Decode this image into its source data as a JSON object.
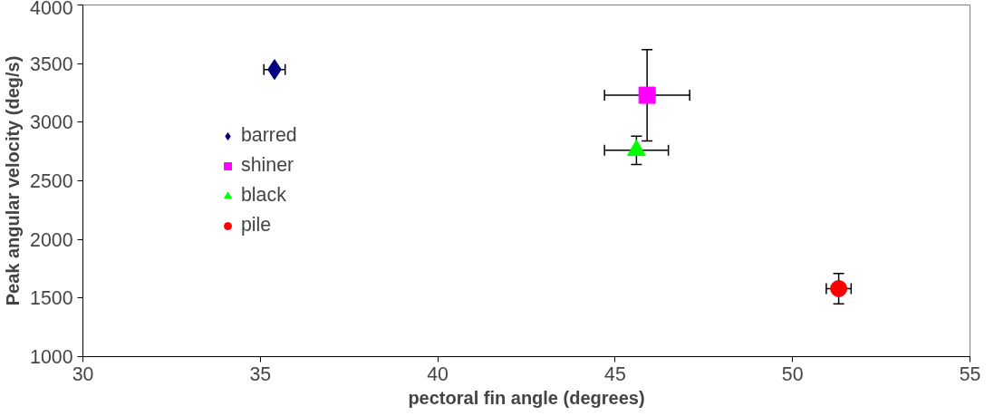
{
  "chart_data": {
    "type": "scatter",
    "xlabel": "pectoral fin angle (degrees)",
    "ylabel": "Peak angular velocity (deg/s)",
    "xlim": [
      30,
      55
    ],
    "xticks": [
      30,
      35,
      40,
      45,
      50,
      55
    ],
    "ylim": [
      1000,
      4000
    ],
    "yticks": [
      1000,
      1500,
      2000,
      2500,
      3000,
      3500,
      4000
    ],
    "grid": false,
    "legend": "left",
    "series": [
      {
        "name": "barred",
        "color": "#000080",
        "marker": "diamond",
        "x": [
          35.4
        ],
        "values": [
          3450
        ],
        "errors": [
          null
        ],
        "xerrors": [
          0.3
        ]
      },
      {
        "name": "shiner",
        "color": "#ff00ff",
        "marker": "square",
        "x": [
          45.9
        ],
        "values": [
          3230
        ],
        "errors": [
          390
        ],
        "xerrors": [
          1.2
        ]
      },
      {
        "name": "black",
        "color": "#00ff00",
        "marker": "triangle",
        "x": [
          45.6
        ],
        "values": [
          2760
        ],
        "errors": [
          120
        ],
        "xerrors": [
          0.9
        ]
      },
      {
        "name": "pile",
        "color": "#ff0000",
        "marker": "circle",
        "x": [
          51.3
        ],
        "values": [
          1580
        ],
        "errors": [
          130
        ],
        "xerrors": [
          0.35
        ]
      }
    ]
  }
}
